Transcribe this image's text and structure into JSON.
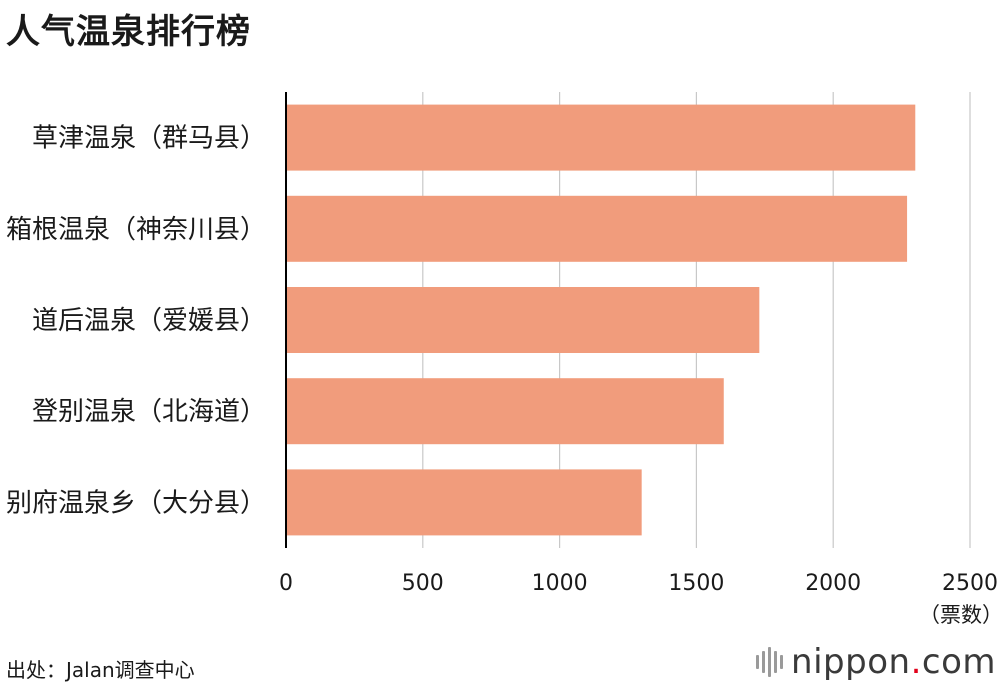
{
  "title": "人气温泉排行榜",
  "source": "出处：Jalan调查中心",
  "brand": {
    "name": "nippon",
    "dot": ".",
    "tld": "com",
    "dot_color": "#e2001a"
  },
  "colors": {
    "bar": "#f19c7c",
    "grid": "#c8c8c8",
    "axis": "#000000"
  },
  "chart_data": {
    "type": "bar",
    "orientation": "horizontal",
    "categories": [
      "草津温泉（群马县）",
      "箱根温泉（神奈川县）",
      "道后温泉（爱媛县）",
      "登别温泉（北海道）",
      "别府温泉乡（大分县）"
    ],
    "values": [
      2300,
      2270,
      1730,
      1600,
      1300
    ],
    "xlim": [
      0,
      2500
    ],
    "xticks": [
      0,
      500,
      1000,
      1500,
      2000,
      2500
    ],
    "xlabel": "（票数）",
    "grid": true
  }
}
